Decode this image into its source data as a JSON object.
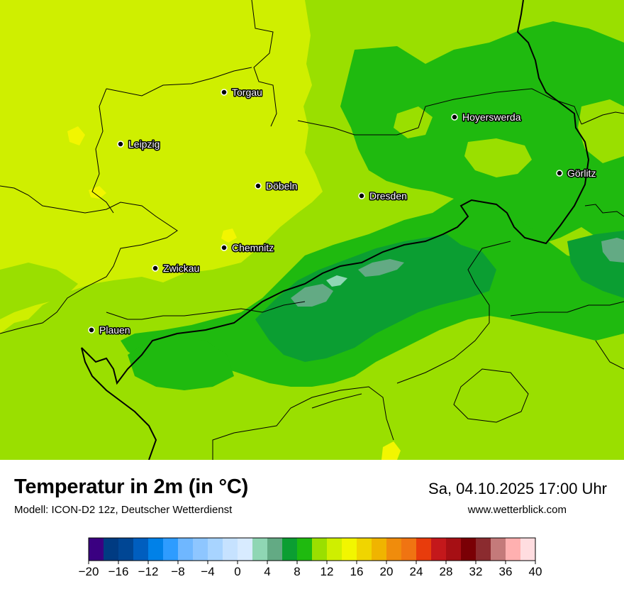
{
  "map": {
    "cities": [
      {
        "name": "Torgau"
      },
      {
        "name": "Leipzig"
      },
      {
        "name": "Döbeln"
      },
      {
        "name": "Dresden"
      },
      {
        "name": "Hoyerswerda"
      },
      {
        "name": "Görlitz"
      },
      {
        "name": "Chemnitz"
      },
      {
        "name": "Zwickau"
      },
      {
        "name": "Plauen"
      }
    ]
  },
  "header": {
    "title": "Temperatur in 2m (in °C)",
    "model": "Modell: ICON-D2 12z, Deutscher Wetterdienst",
    "datetime": "Sa, 04.10.2025 17:00 Uhr",
    "website": "www.wetterblick.com"
  },
  "legend": {
    "ticks": [
      "−20",
      "−16",
      "−12",
      "−8",
      "−4",
      "0",
      "4",
      "8",
      "12",
      "16",
      "20",
      "24",
      "28",
      "32",
      "36",
      "40"
    ],
    "colors": [
      "#3a0081",
      "#003b82",
      "#004694",
      "#005ebf",
      "#0081e8",
      "#2e9cff",
      "#6fb7ff",
      "#8ec6ff",
      "#a8d4ff",
      "#c6e2ff",
      "#d8ebff",
      "#8fd6b4",
      "#63aa84",
      "#0b9e32",
      "#1fba0f",
      "#9adf00",
      "#cfef00",
      "#f2f600",
      "#f0d500",
      "#f0b400",
      "#f08c0c",
      "#f07412",
      "#e83c0c",
      "#c4181b",
      "#a60f14",
      "#7a0005",
      "#8b2b2f",
      "#c47a7a",
      "#ffb0b0",
      "#ffdde0"
    ]
  }
}
